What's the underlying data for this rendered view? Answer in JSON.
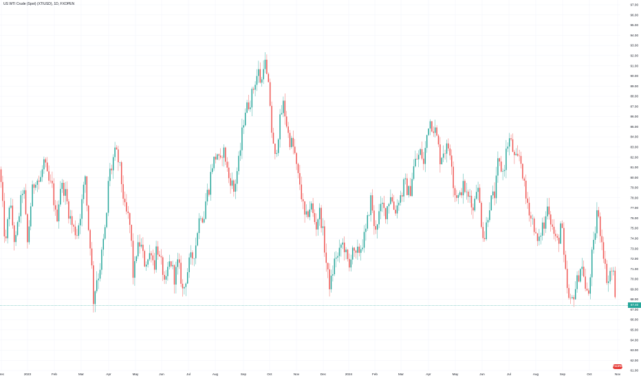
{
  "header": {
    "title": "US WTI Crude (Spot) (XTIUSD), 1D, FXOPEN"
  },
  "colors": {
    "up": "#26a69a",
    "down": "#ef5350",
    "grid": "#f0f3fa",
    "price_line": "#26a69a"
  },
  "last_price_label": "67.40",
  "logo_text": "FXOPEN",
  "chart_data": {
    "type": "candlestick",
    "title": "US WTI Crude (Spot) (XTIUSD), 1D, FXOPEN",
    "xlabel": "",
    "ylabel": "",
    "ylim": [
      61.0,
      97.0
    ],
    "grid": true,
    "y_ticks": [
      "97.00",
      "96.00",
      "95.00",
      "94.00",
      "93.00",
      "92.00",
      "91.00",
      "90.00",
      "89.00",
      "88.00",
      "87.00",
      "86.00",
      "85.00",
      "84.00",
      "83.00",
      "82.00",
      "81.00",
      "80.00",
      "79.00",
      "78.00",
      "77.00",
      "76.00",
      "75.00",
      "74.00",
      "73.00",
      "72.00",
      "71.00",
      "70.00",
      "69.00",
      "68.00",
      "67.00",
      "66.00",
      "65.00",
      "64.00",
      "63.00",
      "62.00",
      "61.00"
    ],
    "x_ticks": [
      "Dec",
      "2023",
      "Feb",
      "Mar",
      "Apr",
      "May",
      "Jun",
      "Jul",
      "Aug",
      "Sep",
      "Oct",
      "Nov",
      "Dec",
      "2024",
      "Feb",
      "Mar",
      "Apr",
      "May",
      "Jun",
      "Jul",
      "Aug",
      "Sep",
      "Oct",
      "Nov"
    ],
    "last_price": 67.4,
    "path": [
      [
        0,
        80.8
      ],
      [
        8,
        73.0
      ],
      [
        14,
        77.8
      ],
      [
        22,
        73.2
      ],
      [
        27,
        76.0
      ],
      [
        34,
        79.4
      ],
      [
        40,
        73.4
      ],
      [
        46,
        78.4
      ],
      [
        52,
        80.0
      ],
      [
        58,
        79.5
      ],
      [
        64,
        81.6
      ],
      [
        70,
        79.6
      ],
      [
        76,
        79.0
      ],
      [
        82,
        75.6
      ],
      [
        88,
        79.2
      ],
      [
        94,
        78.8
      ],
      [
        100,
        76.6
      ],
      [
        106,
        75.0
      ],
      [
        112,
        74.5
      ],
      [
        118,
        77.0
      ],
      [
        124,
        80.2
      ],
      [
        128,
        75.4
      ],
      [
        132,
        73.0
      ],
      [
        136,
        67.8
      ],
      [
        140,
        70.0
      ],
      [
        144,
        70.5
      ],
      [
        148,
        72.5
      ],
      [
        152,
        74.5
      ],
      [
        155,
        76.0
      ],
      [
        158,
        80.4
      ],
      [
        162,
        80.8
      ],
      [
        166,
        82.4
      ],
      [
        170,
        82.2
      ],
      [
        174,
        81.0
      ],
      [
        178,
        78.8
      ],
      [
        182,
        76.6
      ],
      [
        186,
        76.2
      ],
      [
        190,
        74.8
      ],
      [
        194,
        69.8
      ],
      [
        198,
        72.6
      ],
      [
        204,
        73.6
      ],
      [
        210,
        71.6
      ],
      [
        216,
        72.0
      ],
      [
        220,
        73.0
      ],
      [
        224,
        71.0
      ],
      [
        228,
        73.6
      ],
      [
        232,
        71.8
      ],
      [
        236,
        71.2
      ],
      [
        240,
        68.8
      ],
      [
        244,
        71.0
      ],
      [
        248,
        71.8
      ],
      [
        254,
        70.0
      ],
      [
        258,
        71.6
      ],
      [
        262,
        70.6
      ],
      [
        266,
        68.6
      ],
      [
        270,
        70.0
      ],
      [
        276,
        71.8
      ],
      [
        280,
        72.2
      ],
      [
        284,
        73.0
      ],
      [
        288,
        75.4
      ],
      [
        292,
        76.6
      ],
      [
        296,
        75.8
      ],
      [
        300,
        78.2
      ],
      [
        304,
        79.0
      ],
      [
        308,
        81.2
      ],
      [
        312,
        81.8
      ],
      [
        316,
        82.4
      ],
      [
        320,
        81.0
      ],
      [
        324,
        83.0
      ],
      [
        328,
        81.8
      ],
      [
        332,
        80.0
      ],
      [
        336,
        79.8
      ],
      [
        340,
        78.6
      ],
      [
        344,
        80.4
      ],
      [
        348,
        81.8
      ],
      [
        352,
        84.4
      ],
      [
        356,
        86.6
      ],
      [
        360,
        87.0
      ],
      [
        364,
        87.6
      ],
      [
        368,
        88.6
      ],
      [
        372,
        89.8
      ],
      [
        376,
        90.4
      ],
      [
        380,
        89.0
      ],
      [
        384,
        92.0
      ],
      [
        388,
        89.8
      ],
      [
        392,
        88.0
      ],
      [
        396,
        83.6
      ],
      [
        400,
        81.8
      ],
      [
        404,
        84.0
      ],
      [
        408,
        86.0
      ],
      [
        412,
        87.2
      ],
      [
        416,
        85.6
      ],
      [
        420,
        83.8
      ],
      [
        424,
        83.4
      ],
      [
        428,
        82.6
      ],
      [
        432,
        80.4
      ],
      [
        436,
        79.4
      ],
      [
        440,
        77.4
      ],
      [
        444,
        75.6
      ],
      [
        448,
        76.6
      ],
      [
        452,
        77.4
      ],
      [
        456,
        76.0
      ],
      [
        460,
        75.2
      ],
      [
        464,
        76.8
      ],
      [
        468,
        75.4
      ],
      [
        472,
        73.0
      ],
      [
        476,
        70.6
      ],
      [
        480,
        69.2
      ],
      [
        484,
        70.8
      ],
      [
        488,
        72.4
      ],
      [
        492,
        72.0
      ],
      [
        496,
        73.4
      ],
      [
        500,
        73.4
      ],
      [
        504,
        72.0
      ],
      [
        508,
        71.0
      ],
      [
        512,
        73.6
      ],
      [
        516,
        71.8
      ],
      [
        520,
        72.6
      ],
      [
        524,
        73.0
      ],
      [
        528,
        73.8
      ],
      [
        532,
        74.6
      ],
      [
        536,
        76.6
      ],
      [
        540,
        78.2
      ],
      [
        544,
        74.8
      ],
      [
        548,
        75.6
      ],
      [
        552,
        76.6
      ],
      [
        556,
        77.2
      ],
      [
        560,
        76.4
      ],
      [
        564,
        77.4
      ],
      [
        568,
        78.4
      ],
      [
        572,
        77.0
      ],
      [
        576,
        76.8
      ],
      [
        580,
        78.0
      ],
      [
        584,
        78.2
      ],
      [
        588,
        79.6
      ],
      [
        592,
        78.8
      ],
      [
        596,
        78.4
      ],
      [
        600,
        80.6
      ],
      [
        604,
        81.6
      ],
      [
        608,
        82.0
      ],
      [
        612,
        82.6
      ],
      [
        616,
        81.2
      ],
      [
        620,
        83.8
      ],
      [
        624,
        85.8
      ],
      [
        628,
        85.2
      ],
      [
        632,
        84.8
      ],
      [
        636,
        83.6
      ],
      [
        640,
        81.8
      ],
      [
        644,
        82.6
      ],
      [
        648,
        82.8
      ],
      [
        652,
        83.0
      ],
      [
        656,
        82.4
      ],
      [
        660,
        78.4
      ],
      [
        664,
        78.4
      ],
      [
        668,
        77.8
      ],
      [
        672,
        79.2
      ],
      [
        676,
        78.8
      ],
      [
        680,
        77.8
      ],
      [
        684,
        78.4
      ],
      [
        688,
        76.6
      ],
      [
        692,
        79.4
      ],
      [
        696,
        78.4
      ],
      [
        700,
        75.6
      ],
      [
        704,
        73.8
      ],
      [
        708,
        75.8
      ],
      [
        712,
        77.4
      ],
      [
        716,
        78.0
      ],
      [
        720,
        78.4
      ],
      [
        724,
        81.4
      ],
      [
        728,
        81.0
      ],
      [
        732,
        80.4
      ],
      [
        736,
        82.6
      ],
      [
        740,
        83.8
      ],
      [
        744,
        83.2
      ],
      [
        748,
        81.8
      ],
      [
        752,
        81.6
      ],
      [
        756,
        82.2
      ],
      [
        760,
        80.4
      ],
      [
        764,
        78.0
      ],
      [
        768,
        77.4
      ],
      [
        772,
        76.0
      ],
      [
        776,
        75.6
      ],
      [
        780,
        73.6
      ],
      [
        784,
        73.6
      ],
      [
        788,
        75.4
      ],
      [
        792,
        75.0
      ],
      [
        796,
        77.8
      ],
      [
        800,
        76.0
      ],
      [
        804,
        74.8
      ],
      [
        808,
        73.8
      ],
      [
        812,
        73.6
      ],
      [
        816,
        76.0
      ],
      [
        820,
        71.8
      ],
      [
        824,
        69.4
      ],
      [
        828,
        67.4
      ],
      [
        832,
        68.0
      ],
      [
        836,
        69.0
      ],
      [
        840,
        70.0
      ],
      [
        844,
        71.2
      ],
      [
        848,
        71.0
      ],
      [
        852,
        68.4
      ],
      [
        856,
        68.6
      ],
      [
        860,
        72.0
      ],
      [
        864,
        73.6
      ],
      [
        868,
        76.8
      ],
      [
        872,
        75.0
      ],
      [
        876,
        73.6
      ],
      [
        880,
        71.0
      ],
      [
        884,
        69.6
      ],
      [
        888,
        71.0
      ],
      [
        892,
        70.4
      ],
      [
        896,
        67.4
      ]
    ]
  }
}
